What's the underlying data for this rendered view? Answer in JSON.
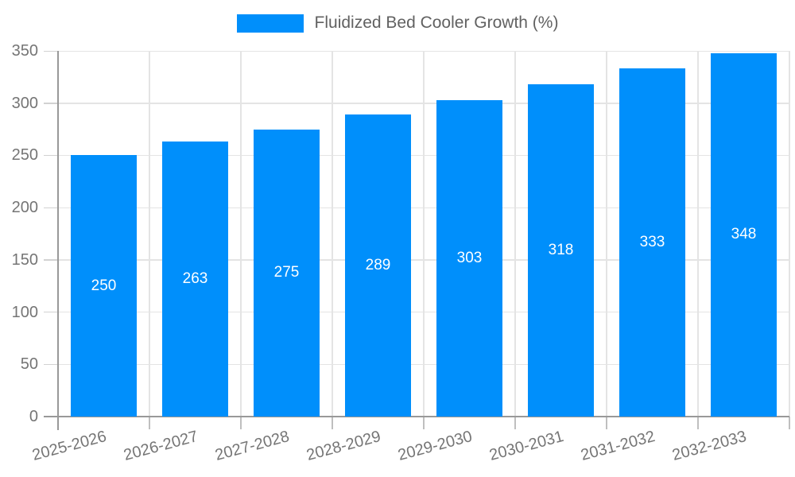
{
  "chart_data": {
    "type": "bar",
    "title": "",
    "legend": {
      "label": "Fluidized Bed Cooler Growth (%)",
      "position": "top"
    },
    "categories": [
      "2025-2026",
      "2026-2027",
      "2027-2028",
      "2028-2029",
      "2029-2030",
      "2030-2031",
      "2031-2032",
      "2032-2033"
    ],
    "values": [
      250,
      263,
      275,
      289,
      303,
      318,
      333,
      348
    ],
    "xlabel": "",
    "ylabel": "",
    "ylim": [
      0,
      350
    ],
    "yticks": [
      0,
      50,
      100,
      150,
      200,
      250,
      300,
      350
    ],
    "grid": true,
    "value_labels": "centered-in-bar",
    "colors": {
      "bar": "#008ffb",
      "grid": "#e4e4e4",
      "axis": "#999999",
      "y_tick": "#d2d2d2",
      "x_tick": "#bfbfbf",
      "axis_label": "#757575",
      "value_label": "#ffffff",
      "legend_text": "#616161",
      "background": "#ffffff"
    }
  }
}
